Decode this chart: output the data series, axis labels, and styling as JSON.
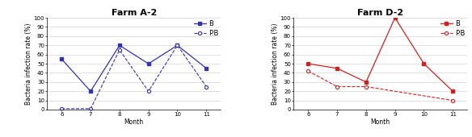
{
  "farm_a2": {
    "title": "Farm A-2",
    "months": [
      6,
      7,
      8,
      9,
      10,
      11
    ],
    "B": [
      55,
      20,
      70,
      50,
      70,
      45
    ],
    "PB": [
      1,
      1,
      65,
      20,
      70,
      25
    ],
    "color": "#3333AA",
    "ylim": [
      0,
      100
    ],
    "yticks": [
      0,
      10,
      20,
      30,
      40,
      50,
      60,
      70,
      80,
      90,
      100
    ]
  },
  "farm_d2": {
    "title": "Farm D-2",
    "months_B": [
      6,
      7,
      8,
      9,
      10,
      11
    ],
    "B": [
      50,
      45,
      30,
      100,
      50,
      20
    ],
    "months_PB": [
      6,
      7,
      8,
      11
    ],
    "PB": [
      42,
      25,
      25,
      10
    ],
    "color": "#CC2222",
    "ylim": [
      0,
      100
    ],
    "yticks": [
      0,
      10,
      20,
      30,
      40,
      50,
      60,
      70,
      80,
      90,
      100
    ]
  },
  "xlabel": "Month",
  "ylabel": "Bacteria infection rate (%)",
  "legend_B": "B",
  "legend_PB": "P.B",
  "title_fontsize": 8,
  "label_fontsize": 5.5,
  "tick_fontsize": 5,
  "legend_fontsize": 6
}
